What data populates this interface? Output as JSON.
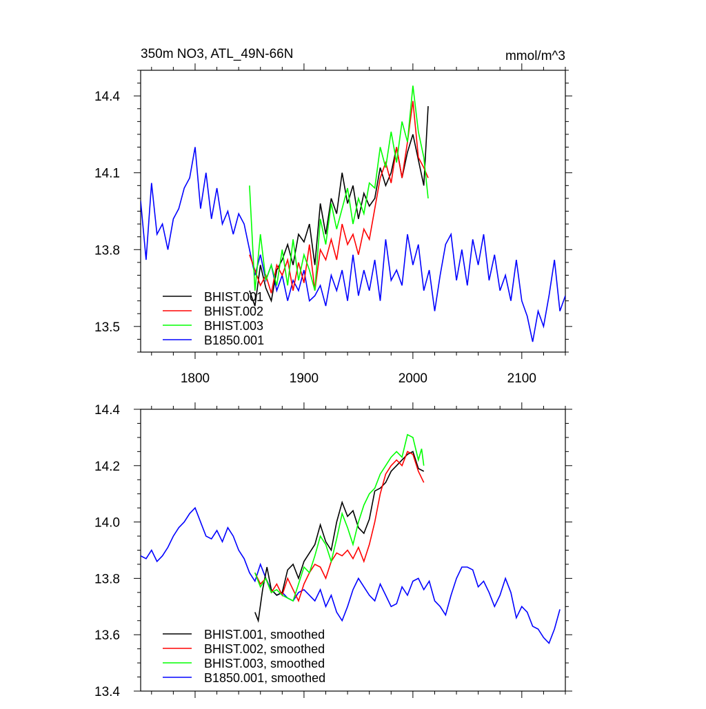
{
  "title_left": "350m NO3, ATL_49N-66N",
  "title_right": "mmol/m^3",
  "chart_data": [
    {
      "type": "line",
      "title": "350m NO3, ATL_49N-66N",
      "units": "mmol/m^3",
      "xlim": [
        1750,
        2140
      ],
      "ylim": [
        13.4,
        14.5
      ],
      "xticks": [
        1800,
        1900,
        2000,
        2100
      ],
      "xtick_labels": [
        "1800",
        "1900",
        "2000",
        "2100"
      ],
      "yticks": [
        13.5,
        13.8,
        14.1,
        14.4
      ],
      "ytick_labels": [
        "13.5",
        "13.8",
        "14.1",
        "14.4"
      ],
      "grid": false,
      "legend_position": "bottom-left",
      "series": [
        {
          "name": "BHIST.001",
          "color": "#000000",
          "x": [
            1850,
            1855,
            1860,
            1865,
            1870,
            1875,
            1880,
            1885,
            1890,
            1895,
            1900,
            1905,
            1910,
            1915,
            1920,
            1925,
            1930,
            1935,
            1940,
            1945,
            1950,
            1955,
            1960,
            1965,
            1970,
            1975,
            1980,
            1985,
            1990,
            1995,
            2000,
            2005,
            2010,
            2014
          ],
          "y": [
            13.64,
            13.58,
            13.74,
            13.65,
            13.6,
            13.72,
            13.76,
            13.82,
            13.74,
            13.86,
            13.83,
            13.9,
            13.74,
            13.98,
            13.86,
            14.0,
            13.94,
            14.1,
            13.98,
            14.05,
            13.92,
            14.02,
            13.97,
            14.0,
            14.12,
            14.05,
            14.1,
            14.2,
            14.08,
            14.18,
            14.25,
            14.15,
            14.05,
            14.36
          ]
        },
        {
          "name": "BHIST.002",
          "color": "#ff0000",
          "x": [
            1850,
            1855,
            1860,
            1865,
            1870,
            1875,
            1880,
            1885,
            1890,
            1895,
            1900,
            1905,
            1910,
            1915,
            1920,
            1925,
            1930,
            1935,
            1940,
            1945,
            1950,
            1955,
            1960,
            1965,
            1970,
            1975,
            1980,
            1985,
            1990,
            1995,
            2000,
            2005,
            2010,
            2014
          ],
          "y": [
            13.78,
            13.72,
            13.66,
            13.7,
            13.63,
            13.74,
            13.7,
            13.76,
            13.64,
            13.75,
            13.67,
            13.82,
            13.64,
            13.8,
            13.76,
            13.84,
            13.76,
            13.9,
            13.82,
            13.86,
            13.78,
            13.88,
            13.84,
            13.96,
            14.08,
            14.14,
            14.06,
            14.2,
            14.08,
            14.22,
            14.38,
            14.16,
            14.12,
            14.08
          ]
        },
        {
          "name": "BHIST.003",
          "color": "#00ff00",
          "x": [
            1850,
            1855,
            1860,
            1865,
            1870,
            1875,
            1880,
            1885,
            1890,
            1895,
            1900,
            1905,
            1910,
            1915,
            1920,
            1925,
            1930,
            1935,
            1940,
            1945,
            1950,
            1955,
            1960,
            1965,
            1970,
            1975,
            1980,
            1985,
            1990,
            1995,
            2000,
            2005,
            2010,
            2014
          ],
          "y": [
            14.05,
            13.64,
            13.86,
            13.68,
            13.74,
            13.66,
            13.8,
            13.66,
            13.84,
            13.68,
            13.78,
            13.72,
            13.64,
            13.92,
            13.82,
            13.98,
            13.88,
            13.96,
            14.04,
            13.9,
            14.0,
            13.94,
            14.06,
            14.04,
            14.2,
            14.12,
            14.26,
            14.14,
            14.3,
            14.22,
            14.44,
            14.26,
            14.16,
            14.0
          ]
        },
        {
          "name": "B1850.001",
          "color": "#0000ff",
          "x": [
            1750,
            1755,
            1760,
            1765,
            1770,
            1775,
            1780,
            1785,
            1790,
            1795,
            1800,
            1805,
            1810,
            1815,
            1820,
            1825,
            1830,
            1835,
            1840,
            1845,
            1850,
            1855,
            1860,
            1865,
            1870,
            1875,
            1880,
            1885,
            1890,
            1895,
            1900,
            1905,
            1910,
            1915,
            1920,
            1925,
            1930,
            1935,
            1940,
            1945,
            1950,
            1955,
            1960,
            1965,
            1970,
            1975,
            1980,
            1985,
            1990,
            1995,
            2000,
            2005,
            2010,
            2015,
            2020,
            2025,
            2030,
            2035,
            2040,
            2045,
            2050,
            2055,
            2060,
            2065,
            2070,
            2075,
            2080,
            2085,
            2090,
            2095,
            2100,
            2105,
            2110,
            2115,
            2120,
            2125,
            2130,
            2135,
            2140
          ],
          "y": [
            13.99,
            13.76,
            14.06,
            13.86,
            13.9,
            13.8,
            13.92,
            13.96,
            14.04,
            14.08,
            14.2,
            13.96,
            14.1,
            13.92,
            14.04,
            13.9,
            13.95,
            13.86,
            13.94,
            13.9,
            13.8,
            13.7,
            13.78,
            13.68,
            13.74,
            13.64,
            13.7,
            13.6,
            13.68,
            13.64,
            13.72,
            13.6,
            13.62,
            13.66,
            13.58,
            13.7,
            13.64,
            13.72,
            13.6,
            13.78,
            13.62,
            13.72,
            13.64,
            13.76,
            13.6,
            13.84,
            13.68,
            13.72,
            13.66,
            13.86,
            13.74,
            13.82,
            13.64,
            13.72,
            13.56,
            13.7,
            13.82,
            13.86,
            13.68,
            13.8,
            13.66,
            13.84,
            13.74,
            13.86,
            13.68,
            13.78,
            13.64,
            13.7,
            13.6,
            13.76,
            13.6,
            13.54,
            13.44,
            13.56,
            13.5,
            13.62,
            13.76,
            13.56,
            13.62
          ]
        }
      ]
    },
    {
      "type": "line",
      "xlim": [
        1750,
        2140
      ],
      "ylim": [
        13.4,
        14.4
      ],
      "xticks": [
        1800,
        1900,
        2000,
        2100
      ],
      "yticks": [
        13.4,
        13.6,
        13.8,
        14.0,
        14.2,
        14.4
      ],
      "ytick_labels": [
        "13.4",
        "13.6",
        "13.8",
        "14.0",
        "14.2",
        "14.4"
      ],
      "grid": false,
      "legend_position": "bottom-left",
      "series": [
        {
          "name": "BHIST.001, smoothed",
          "color": "#000000",
          "x": [
            1855,
            1858,
            1862,
            1866,
            1870,
            1875,
            1880,
            1885,
            1890,
            1895,
            1900,
            1905,
            1910,
            1915,
            1920,
            1925,
            1930,
            1935,
            1940,
            1945,
            1950,
            1955,
            1960,
            1965,
            1970,
            1975,
            1980,
            1985,
            1990,
            1995,
            2000,
            2005,
            2010
          ],
          "y": [
            13.68,
            13.65,
            13.76,
            13.84,
            13.76,
            13.74,
            13.75,
            13.83,
            13.85,
            13.8,
            13.86,
            13.89,
            13.92,
            13.99,
            13.93,
            13.9,
            14.0,
            14.07,
            14.02,
            14.04,
            13.98,
            13.96,
            14.01,
            14.11,
            14.12,
            14.14,
            14.18,
            14.2,
            14.22,
            14.24,
            14.25,
            14.19,
            14.18
          ]
        },
        {
          "name": "BHIST.002, smoothed",
          "color": "#ff0000",
          "x": [
            1855,
            1860,
            1865,
            1870,
            1875,
            1880,
            1885,
            1890,
            1895,
            1900,
            1905,
            1910,
            1915,
            1920,
            1925,
            1930,
            1935,
            1940,
            1945,
            1950,
            1955,
            1960,
            1965,
            1970,
            1975,
            1980,
            1985,
            1990,
            1995,
            2000,
            2005,
            2010
          ],
          "y": [
            13.82,
            13.78,
            13.8,
            13.75,
            13.78,
            13.74,
            13.8,
            13.76,
            13.72,
            13.78,
            13.82,
            13.85,
            13.84,
            13.8,
            13.86,
            13.89,
            13.88,
            13.9,
            13.87,
            13.91,
            13.86,
            13.92,
            14.0,
            14.1,
            14.17,
            14.2,
            14.22,
            14.2,
            14.25,
            14.24,
            14.18,
            14.14
          ]
        },
        {
          "name": "BHIST.003, smoothed",
          "color": "#00ff00",
          "x": [
            1855,
            1860,
            1865,
            1870,
            1875,
            1880,
            1885,
            1890,
            1895,
            1900,
            1905,
            1910,
            1915,
            1920,
            1925,
            1930,
            1935,
            1940,
            1945,
            1950,
            1955,
            1960,
            1965,
            1970,
            1975,
            1980,
            1985,
            1990,
            1995,
            2000,
            2005,
            2008,
            2010
          ],
          "y": [
            13.82,
            13.77,
            13.8,
            13.75,
            13.76,
            13.74,
            13.73,
            13.72,
            13.78,
            13.84,
            13.82,
            13.88,
            13.95,
            13.92,
            13.86,
            13.94,
            14.03,
            13.98,
            13.92,
            14.0,
            14.06,
            14.1,
            14.12,
            14.17,
            14.2,
            14.23,
            14.25,
            14.23,
            14.31,
            14.3,
            14.22,
            14.26,
            14.2
          ]
        },
        {
          "name": "B1850.001, smoothed",
          "color": "#0000ff",
          "x": [
            1750,
            1755,
            1760,
            1765,
            1770,
            1775,
            1780,
            1785,
            1790,
            1795,
            1800,
            1805,
            1810,
            1815,
            1820,
            1825,
            1830,
            1835,
            1840,
            1845,
            1850,
            1855,
            1860,
            1865,
            1870,
            1875,
            1880,
            1885,
            1890,
            1895,
            1900,
            1905,
            1910,
            1915,
            1920,
            1925,
            1930,
            1935,
            1940,
            1945,
            1950,
            1955,
            1960,
            1965,
            1970,
            1975,
            1980,
            1985,
            1990,
            1995,
            2000,
            2005,
            2010,
            2015,
            2020,
            2025,
            2030,
            2035,
            2040,
            2045,
            2050,
            2055,
            2060,
            2065,
            2070,
            2075,
            2080,
            2085,
            2090,
            2095,
            2100,
            2105,
            2110,
            2115,
            2120,
            2125,
            2130,
            2135
          ],
          "y": [
            13.88,
            13.87,
            13.9,
            13.86,
            13.88,
            13.91,
            13.95,
            13.98,
            14.0,
            14.03,
            14.05,
            14.0,
            13.95,
            13.94,
            13.97,
            13.93,
            13.98,
            13.95,
            13.9,
            13.87,
            13.82,
            13.79,
            13.85,
            13.8,
            13.76,
            13.74,
            13.75,
            13.73,
            13.72,
            13.75,
            13.76,
            13.74,
            13.72,
            13.76,
            13.7,
            13.74,
            13.68,
            13.65,
            13.7,
            13.76,
            13.8,
            13.77,
            13.74,
            13.72,
            13.78,
            13.74,
            13.7,
            13.71,
            13.77,
            13.74,
            13.79,
            13.8,
            13.76,
            13.79,
            13.72,
            13.7,
            13.67,
            13.74,
            13.8,
            13.84,
            13.84,
            13.83,
            13.77,
            13.79,
            13.75,
            13.7,
            13.74,
            13.8,
            13.75,
            13.66,
            13.7,
            13.68,
            13.63,
            13.62,
            13.59,
            13.57,
            13.62,
            13.69
          ]
        }
      ]
    }
  ]
}
